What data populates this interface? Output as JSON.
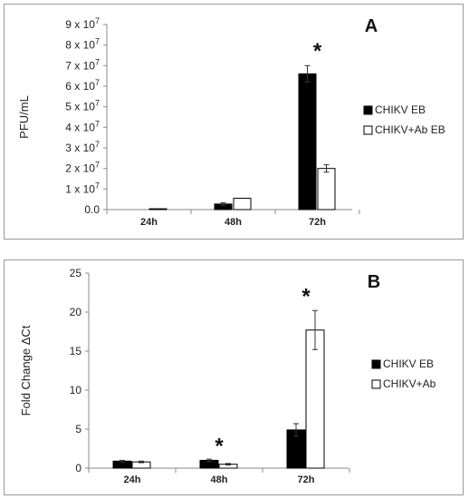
{
  "chart_data": [
    {
      "type": "bar",
      "panel_label": "A",
      "ylabel": "PFU/mL",
      "categories": [
        "24h",
        "48h",
        "72h"
      ],
      "ylim": [
        0,
        90000000
      ],
      "y_ticks": [
        0,
        10000000,
        20000000,
        30000000,
        40000000,
        50000000,
        60000000,
        70000000,
        80000000,
        90000000
      ],
      "y_tick_labels": [
        {
          "base": "0.0",
          "exp": ""
        },
        {
          "base": "1 x 10",
          "exp": "7"
        },
        {
          "base": "2 x 10",
          "exp": "7"
        },
        {
          "base": "3 x 10",
          "exp": "7"
        },
        {
          "base": "4 x 10",
          "exp": "7"
        },
        {
          "base": "5 x 10",
          "exp": "7"
        },
        {
          "base": "6 x 10",
          "exp": "7"
        },
        {
          "base": "7 x 10",
          "exp": "7"
        },
        {
          "base": "8 x 10",
          "exp": "7"
        },
        {
          "base": "9 x 10",
          "exp": "7"
        }
      ],
      "series": [
        {
          "name": "CHIKV EB",
          "color": "#000000",
          "values": [
            0,
            2700000,
            66000000
          ],
          "errors": [
            0,
            600000,
            4000000
          ]
        },
        {
          "name": "CHIKV+Ab EB",
          "color": "#ffffff",
          "values": [
            400000,
            5500000,
            20000000
          ],
          "errors": [
            0,
            0,
            1800000
          ]
        }
      ],
      "annotations": [
        {
          "text": "*",
          "category": "72h",
          "y": 79000000
        }
      ],
      "legend_position": "right",
      "grid": false
    },
    {
      "type": "bar",
      "panel_label": "B",
      "ylabel": "Fold Change ΔCt",
      "categories": [
        "24h",
        "48h",
        "72h"
      ],
      "ylim": [
        0,
        25
      ],
      "y_ticks": [
        0,
        5,
        10,
        15,
        20,
        25
      ],
      "y_tick_labels": [
        {
          "base": "0",
          "exp": ""
        },
        {
          "base": "5",
          "exp": ""
        },
        {
          "base": "10",
          "exp": ""
        },
        {
          "base": "15",
          "exp": ""
        },
        {
          "base": "20",
          "exp": ""
        },
        {
          "base": "25",
          "exp": ""
        }
      ],
      "series": [
        {
          "name": "CHIKV EB",
          "color": "#000000",
          "values": [
            0.9,
            1.0,
            4.9
          ],
          "errors": [
            0.1,
            0.15,
            0.8
          ]
        },
        {
          "name": "CHIKV+Ab",
          "color": "#ffffff",
          "values": [
            0.8,
            0.5,
            17.7
          ],
          "errors": [
            0.1,
            0.1,
            2.5
          ]
        }
      ],
      "annotations": [
        {
          "text": "*",
          "category": "48h",
          "y": 3.3
        },
        {
          "text": "*",
          "category": "72h",
          "y": 22.5
        }
      ],
      "legend_position": "right",
      "grid": false
    }
  ]
}
